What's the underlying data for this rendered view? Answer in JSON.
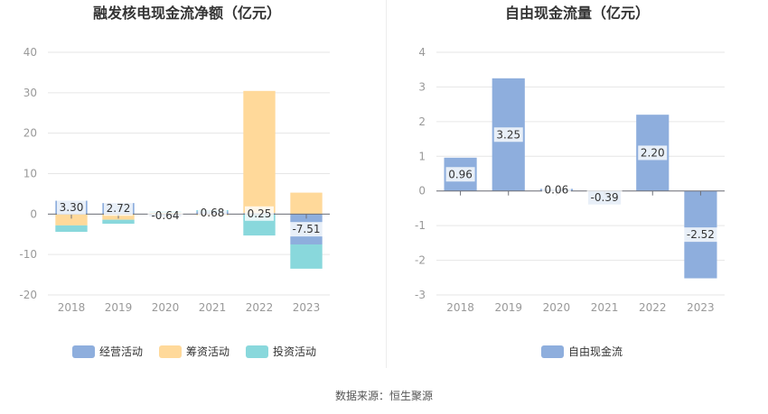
{
  "source_text": "数据来源：恒生聚源",
  "chart_data": [
    {
      "type": "bar",
      "stacked": true,
      "title": "融发核电现金流净额（亿元）",
      "categories": [
        "2018",
        "2019",
        "2020",
        "2021",
        "2022",
        "2023"
      ],
      "ylim": [
        -20,
        40
      ],
      "yticks": [
        -20,
        -10,
        0,
        10,
        20,
        30,
        40
      ],
      "grid": true,
      "legend_position": "bottom",
      "series": [
        {
          "name": "经营活动",
          "color": "#8eaedd",
          "values": [
            3.3,
            2.72,
            -0.64,
            0.68,
            0.25,
            -7.51
          ]
        },
        {
          "name": "筹资活动",
          "color": "#ffd99a",
          "values": [
            -2.8,
            -1.4,
            0.3,
            -0.3,
            30.2,
            5.3
          ]
        },
        {
          "name": "投资活动",
          "color": "#89d8dc",
          "values": [
            -1.6,
            -1.0,
            0.4,
            0.3,
            -5.3,
            -6.0
          ]
        }
      ],
      "data_labels": [
        "3.30",
        "2.72",
        "-0.64",
        "0.68",
        "0.25",
        "-7.51"
      ]
    },
    {
      "type": "bar",
      "title": "自由现金流量（亿元）",
      "categories": [
        "2018",
        "2019",
        "2020",
        "2021",
        "2022",
        "2023"
      ],
      "ylim": [
        -3,
        4
      ],
      "yticks": [
        -3,
        -2,
        -1,
        0,
        1,
        2,
        3,
        4
      ],
      "grid": true,
      "legend_position": "bottom",
      "series": [
        {
          "name": "自由现金流",
          "color": "#8eaedd",
          "values": [
            0.96,
            3.25,
            0.06,
            -0.39,
            2.2,
            -2.52
          ]
        }
      ],
      "data_labels": [
        "0.96",
        "3.25",
        "0.06",
        "-0.39",
        "2.20",
        "-2.52"
      ]
    }
  ]
}
